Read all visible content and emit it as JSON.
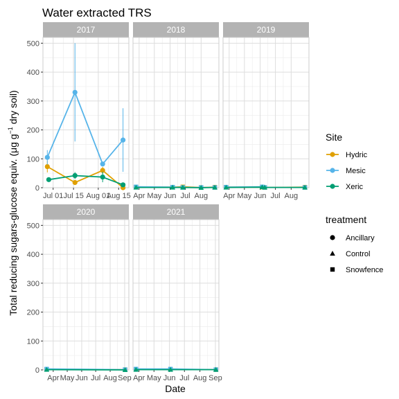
{
  "chart_data": {
    "type": "line",
    "title": "Water extracted TRS",
    "xlabel": "Date",
    "ylabel_main": "Total reducing sugars-glucose equiv. (μg g",
    "ylabel_sup": "−1",
    "ylabel_tail": " dry soil)",
    "ylim": [
      0,
      520
    ],
    "yticks": [
      "0",
      "100",
      "200",
      "300",
      "400",
      "500"
    ],
    "grid": true,
    "legend_position": "right",
    "legend": {
      "site_title": "Site",
      "sites": [
        {
          "name": "Hydric",
          "color": "#E0A000"
        },
        {
          "name": "Mesic",
          "color": "#56B4E9"
        },
        {
          "name": "Xeric",
          "color": "#009E73"
        }
      ],
      "treatment_title": "treatment",
      "treatments": [
        {
          "name": "Ancillary",
          "shape": "circle"
        },
        {
          "name": "Control",
          "shape": "triangle"
        },
        {
          "name": "Snowfence",
          "shape": "square"
        }
      ]
    },
    "panels": [
      {
        "name": "2017",
        "xrange": [
          "2017-06-24",
          "2017-08-22"
        ],
        "xticks": [
          {
            "label": "Jul 01",
            "date": "2017-07-01"
          },
          {
            "label": "Jul 15",
            "date": "2017-07-15"
          },
          {
            "label": "Aug 01",
            "date": "2017-08-01"
          },
          {
            "label": "Aug 15",
            "date": "2017-08-15"
          }
        ],
        "series": [
          {
            "name": "Hydric",
            "shape": "circle",
            "points": [
              {
                "x": "2017-06-27",
                "y": 73,
                "err": 20
              },
              {
                "x": "2017-07-16",
                "y": 18
              },
              {
                "x": "2017-08-04",
                "y": 60,
                "err": 12
              },
              {
                "x": "2017-08-18",
                "y": 0
              }
            ]
          },
          {
            "name": "Mesic",
            "shape": "circle",
            "points": [
              {
                "x": "2017-06-27",
                "y": 105,
                "err": 25
              },
              {
                "x": "2017-07-16",
                "y": 330,
                "err": 170
              },
              {
                "x": "2017-08-04",
                "y": 82,
                "err": 8
              },
              {
                "x": "2017-08-18",
                "y": 165,
                "err": 110
              }
            ]
          },
          {
            "name": "Xeric",
            "shape": "circle",
            "points": [
              {
                "x": "2017-06-28",
                "y": 28
              },
              {
                "x": "2017-07-16",
                "y": 42,
                "err": 12
              },
              {
                "x": "2017-08-04",
                "y": 37,
                "err": 18
              },
              {
                "x": "2017-08-18",
                "y": 10
              }
            ]
          }
        ]
      },
      {
        "name": "2018",
        "xrange": [
          "2018-03-20",
          "2018-09-05"
        ],
        "xticks": [
          {
            "label": "Apr",
            "date": "2018-04-01"
          },
          {
            "label": "May",
            "date": "2018-05-01"
          },
          {
            "label": "Jun",
            "date": "2018-06-01"
          },
          {
            "label": "Jul",
            "date": "2018-07-01"
          },
          {
            "label": "Aug",
            "date": "2018-08-01"
          }
        ],
        "series": [
          {
            "name": "Hydric",
            "shape": "square",
            "points": [
              {
                "x": "2018-03-26",
                "y": 2
              },
              {
                "x": "2018-06-06",
                "y": 2
              },
              {
                "x": "2018-06-26",
                "y": 3
              },
              {
                "x": "2018-08-01",
                "y": 1
              },
              {
                "x": "2018-08-28",
                "y": 2
              }
            ]
          },
          {
            "name": "Mesic",
            "shape": "square",
            "points": [
              {
                "x": "2018-03-26",
                "y": 3
              },
              {
                "x": "2018-06-06",
                "y": 2
              },
              {
                "x": "2018-06-26",
                "y": 1
              },
              {
                "x": "2018-08-01",
                "y": 1
              },
              {
                "x": "2018-08-28",
                "y": 1
              }
            ]
          },
          {
            "name": "Xeric",
            "shape": "triangle",
            "points": [
              {
                "x": "2018-03-26",
                "y": 1
              },
              {
                "x": "2018-06-06",
                "y": 1
              },
              {
                "x": "2018-06-26",
                "y": 1
              },
              {
                "x": "2018-08-01",
                "y": 0
              },
              {
                "x": "2018-08-28",
                "y": 1
              }
            ]
          }
        ]
      },
      {
        "name": "2019",
        "xrange": [
          "2019-03-20",
          "2019-09-05"
        ],
        "xticks": [
          {
            "label": "Apr",
            "date": "2019-04-01"
          },
          {
            "label": "May",
            "date": "2019-05-01"
          },
          {
            "label": "Jun",
            "date": "2019-06-01"
          },
          {
            "label": "Jul",
            "date": "2019-07-01"
          },
          {
            "label": "Aug",
            "date": "2019-08-01"
          }
        ],
        "series": [
          {
            "name": "Hydric",
            "shape": "square",
            "points": [
              {
                "x": "2019-03-26",
                "y": 2
              },
              {
                "x": "2019-06-05",
                "y": 2
              },
              {
                "x": "2019-06-10",
                "y": 1
              },
              {
                "x": "2019-08-28",
                "y": 2
              }
            ]
          },
          {
            "name": "Mesic",
            "shape": "square",
            "points": [
              {
                "x": "2019-03-26",
                "y": 2
              },
              {
                "x": "2019-06-05",
                "y": 3
              },
              {
                "x": "2019-06-10",
                "y": 1
              },
              {
                "x": "2019-08-28",
                "y": 1
              }
            ]
          },
          {
            "name": "Xeric",
            "shape": "triangle",
            "points": [
              {
                "x": "2019-03-26",
                "y": 1
              },
              {
                "x": "2019-06-05",
                "y": 2
              },
              {
                "x": "2019-06-10",
                "y": 1
              },
              {
                "x": "2019-08-28",
                "y": 1
              }
            ]
          }
        ]
      },
      {
        "name": "2020",
        "xrange": [
          "2020-03-10",
          "2020-09-10"
        ],
        "xticks": [
          {
            "label": "Apr",
            "date": "2020-04-01"
          },
          {
            "label": "May",
            "date": "2020-05-01"
          },
          {
            "label": "Jun",
            "date": "2020-06-01"
          },
          {
            "label": "Jul",
            "date": "2020-07-01"
          },
          {
            "label": "Aug",
            "date": "2020-08-01"
          },
          {
            "label": "Sep",
            "date": "2020-09-01"
          }
        ],
        "series": [
          {
            "name": "Hydric",
            "shape": "square",
            "points": [
              {
                "x": "2020-03-18",
                "y": 2
              },
              {
                "x": "2020-09-02",
                "y": 1
              }
            ]
          },
          {
            "name": "Mesic",
            "shape": "square",
            "points": [
              {
                "x": "2020-03-18",
                "y": 3
              },
              {
                "x": "2020-09-02",
                "y": 1
              }
            ]
          },
          {
            "name": "Xeric",
            "shape": "triangle",
            "points": [
              {
                "x": "2020-03-18",
                "y": 1
              },
              {
                "x": "2020-09-02",
                "y": 0
              }
            ]
          }
        ]
      },
      {
        "name": "2021",
        "xrange": [
          "2021-03-20",
          "2021-09-08"
        ],
        "xticks": [
          {
            "label": "Apr",
            "date": "2021-04-01"
          },
          {
            "label": "May",
            "date": "2021-05-01"
          },
          {
            "label": "Jun",
            "date": "2021-06-01"
          },
          {
            "label": "Jul",
            "date": "2021-07-01"
          },
          {
            "label": "Aug",
            "date": "2021-08-01"
          },
          {
            "label": "Sep",
            "date": "2021-09-01"
          }
        ],
        "series": [
          {
            "name": "Hydric",
            "shape": "square",
            "points": [
              {
                "x": "2021-03-26",
                "y": 2
              },
              {
                "x": "2021-06-03",
                "y": 2
              },
              {
                "x": "2021-09-02",
                "y": 1
              }
            ]
          },
          {
            "name": "Mesic",
            "shape": "square",
            "points": [
              {
                "x": "2021-03-26",
                "y": 3
              },
              {
                "x": "2021-06-03",
                "y": 3
              },
              {
                "x": "2021-09-02",
                "y": 1
              }
            ]
          },
          {
            "name": "Xeric",
            "shape": "triangle",
            "points": [
              {
                "x": "2021-03-26",
                "y": 1
              },
              {
                "x": "2021-06-03",
                "y": 1
              },
              {
                "x": "2021-09-02",
                "y": 1
              }
            ]
          }
        ]
      }
    ]
  }
}
